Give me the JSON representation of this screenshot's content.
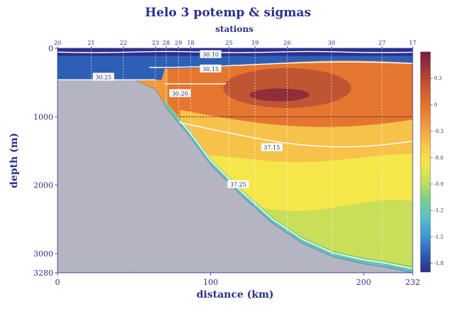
{
  "chart_data": {
    "type": "heatmap",
    "title": "Helo 3 potemp & sigmas",
    "subtitle": "stations",
    "xlabel": "distance (km)",
    "ylabel": "depth (m)",
    "xlim": [
      0,
      232
    ],
    "ylim": [
      0,
      3280
    ],
    "x_ticks": [
      "0",
      "100",
      "200",
      "232"
    ],
    "x_tick_values": [
      0,
      100,
      200,
      232
    ],
    "y_ticks": [
      "0",
      "1000",
      "2000",
      "3000",
      "3280"
    ],
    "y_tick_values": [
      0,
      1000,
      2000,
      3000,
      3280
    ],
    "stations": [
      {
        "label": "20",
        "x": 0
      },
      {
        "label": "21",
        "x": 22
      },
      {
        "label": "22",
        "x": 43
      },
      {
        "label": "23",
        "x": 64
      },
      {
        "label": "28",
        "x": 71
      },
      {
        "label": "29",
        "x": 79
      },
      {
        "label": "18",
        "x": 87
      },
      {
        "label": "25",
        "x": 112
      },
      {
        "label": "19",
        "x": 129
      },
      {
        "label": "26",
        "x": 150
      },
      {
        "label": "30",
        "x": 179
      },
      {
        "label": "27",
        "x": 212
      },
      {
        "label": "17",
        "x": 232
      }
    ],
    "colorbar": {
      "ticks": [
        "0.3",
        "0",
        "-0.3",
        "-0.6",
        "-0.9",
        "-1.2",
        "-1.5",
        "-1.8"
      ],
      "tick_values": [
        0.3,
        0,
        -0.3,
        -0.6,
        -0.9,
        -1.2,
        -1.5,
        -1.8
      ],
      "range": [
        -1.9,
        0.6
      ],
      "colors": [
        "#2b2f8c",
        "#2e5fb6",
        "#3b9bd6",
        "#59c2c8",
        "#7fcf86",
        "#c9df5a",
        "#f5e64a",
        "#f7c24a",
        "#f09a3e",
        "#e5762f",
        "#cf5a2e",
        "#a03a36",
        "#7a1d3c"
      ]
    },
    "contours": [
      {
        "label": "30.10"
      },
      {
        "label": "30.15"
      },
      {
        "label": "30.25"
      },
      {
        "label": "30.20"
      },
      {
        "label": "37.15"
      },
      {
        "label": "37.25"
      }
    ],
    "reference_depth": 1000,
    "bathymetry": [
      {
        "x": 0,
        "depth": 460
      },
      {
        "x": 50,
        "depth": 460
      },
      {
        "x": 64,
        "depth": 600
      },
      {
        "x": 72,
        "depth": 900
      },
      {
        "x": 85,
        "depth": 1250
      },
      {
        "x": 100,
        "depth": 1700
      },
      {
        "x": 120,
        "depth": 2150
      },
      {
        "x": 140,
        "depth": 2550
      },
      {
        "x": 160,
        "depth": 2850
      },
      {
        "x": 180,
        "depth": 3050
      },
      {
        "x": 200,
        "depth": 3150
      },
      {
        "x": 215,
        "depth": 3200
      },
      {
        "x": 232,
        "depth": 3280
      }
    ]
  }
}
